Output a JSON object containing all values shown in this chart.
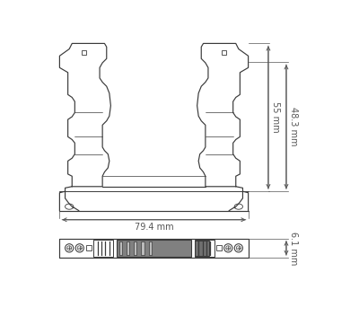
{
  "bg_color": "#ffffff",
  "line_color": "#3a3a3a",
  "dim_color": "#555555",
  "fig_width": 4.0,
  "fig_height": 3.52,
  "dpi": 100,
  "dim_55mm": "55 mm",
  "dim_483mm": "48.3 mm",
  "dim_794mm": "79.4 mm",
  "dim_61mm": "6.1 mm",
  "font_size": 7.0
}
